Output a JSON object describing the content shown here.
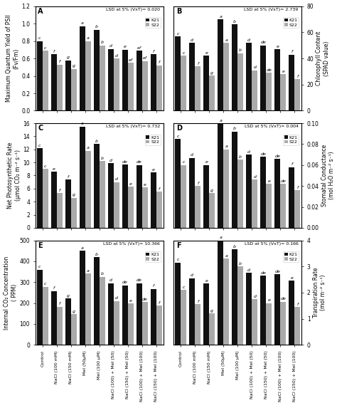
{
  "chart_data": [
    {
      "type": "bar",
      "title": "A",
      "annotations": [
        "LSD at 5% (VxT)= 0.020"
      ],
      "ylabel": "Maximum Quantum Yield of PSII\n(Fv/Fm)",
      "categories": [
        "Control",
        "NaCl (100 mM)",
        "NaCl (150 mM)",
        "Mel (50μM)",
        "Mel (100 μM)",
        "NaCl (100) + Mel (50)",
        "NaCl (150) + Mel (50)",
        "NaCl (100) + Mel (100)",
        "NaCl (150) + Mel (100)"
      ],
      "series": [
        {
          "name": "K21",
          "color": "#111111",
          "values": [
            0.8,
            0.65,
            0.58,
            0.97,
            0.93,
            0.71,
            0.7,
            0.69,
            0.65
          ],
          "labels": [
            "c",
            "f",
            "g",
            "a",
            "b",
            "d",
            "e",
            "ef",
            "f"
          ]
        },
        {
          "name": "S22",
          "color": "#aaaaaa",
          "values": [
            0.69,
            0.53,
            0.48,
            0.8,
            0.75,
            0.6,
            0.55,
            0.57,
            0.52
          ],
          "labels": [
            "c",
            "f",
            "g",
            "a",
            "b",
            "d",
            "ef",
            "ef",
            "f"
          ]
        }
      ],
      "ylim": [
        0.0,
        1.2
      ],
      "yticks": [
        0.0,
        0.2,
        0.4,
        0.6,
        0.8,
        1.0,
        1.2
      ],
      "legend": "upper right",
      "tick_labels": "y"
    },
    {
      "type": "bar",
      "title": "B",
      "annotations": [
        "LSD at 5% (VxT)= 2.739"
      ],
      "ylabel": "Chlorophyll Content\n(SPAD value)",
      "categories": [
        "Control",
        "NaCl (100 mM)",
        "NaCl (150 mM)",
        "Mel (50μM)",
        "Mel (100 μM)",
        "NaCl (100) + Mel (50)",
        "NaCl (150) + Mel (50)",
        "NaCl (100) + Mel (100)",
        "NaCl (150) + Mel (100)"
      ],
      "series": [
        {
          "name": "K21",
          "color": "#111111",
          "values": [
            57,
            52,
            42,
            70,
            66,
            52,
            50,
            47,
            43
          ],
          "labels": [
            "c",
            "d",
            "e",
            "a",
            "b",
            "d",
            "de",
            "e",
            "f"
          ]
        },
        {
          "name": "S22",
          "color": "#aaaaaa",
          "values": [
            42,
            34,
            27,
            52,
            44,
            31,
            29,
            28,
            24
          ],
          "labels": [
            "c",
            "f",
            "g",
            "a",
            "b",
            "d",
            "de",
            "e",
            "f"
          ]
        }
      ],
      "ylim": [
        0,
        80
      ],
      "yticks": [
        0,
        20,
        40,
        60,
        80
      ],
      "legend": "upper right",
      "tick_labels": "y"
    },
    {
      "type": "bar",
      "title": "C",
      "annotations": [
        "LSD at 5% (VxT)= 0.732"
      ],
      "ylabel": "Net Photosynthetic Rate\n(μmol CO₂ m⁻² s⁻¹)",
      "categories": [
        "Control",
        "NaCl (100 mM)",
        "NaCl (150 mM)",
        "Mel (50μM)",
        "Mel (100 μM)",
        "NaCl (100) + Mel (50)",
        "NaCl (150) + Mel (50)",
        "NaCl (100) + Mel (100)",
        "NaCl (150) + Mel (100)"
      ],
      "series": [
        {
          "name": "K21",
          "color": "#111111",
          "values": [
            12.2,
            8.6,
            7.4,
            15.5,
            12.8,
            9.9,
            9.7,
            9.6,
            8.5
          ],
          "labels": [
            "c",
            "e",
            "f",
            "a",
            "b",
            "d",
            "de",
            "de",
            "e"
          ]
        },
        {
          "name": "S22",
          "color": "#aaaaaa",
          "values": [
            9.0,
            5.3,
            4.6,
            11.8,
            10.2,
            7.0,
            6.3,
            6.2,
            5.5
          ],
          "labels": [
            "c",
            "f",
            "g",
            "a",
            "b",
            "d",
            "e",
            "e",
            "f"
          ]
        }
      ],
      "ylim": [
        0,
        16
      ],
      "yticks": [
        0,
        2,
        4,
        6,
        8,
        10,
        12,
        14,
        16
      ],
      "legend": "upper right",
      "tick_labels": "y"
    },
    {
      "type": "bar",
      "title": "D",
      "annotations": [
        "LSD at 5% (VxT)= 0.004"
      ],
      "ylabel": "Stomatal Conductance\n(mol H₂O m⁻² s⁻¹)",
      "categories": [
        "Control",
        "NaCl (100 mM)",
        "NaCl (150 mM)",
        "Mel (50μM)",
        "Mel (100 μM)",
        "NaCl (100) + Mel (50)",
        "NaCl (150) + Mel (50)",
        "NaCl (100) + Mel (100)",
        "NaCl (150) + Mel (100)"
      ],
      "series": [
        {
          "name": "K21",
          "color": "#111111",
          "values": [
            0.085,
            0.067,
            0.06,
            0.1,
            0.092,
            0.07,
            0.068,
            0.066,
            0.058
          ],
          "labels": [
            "c",
            "d",
            "e",
            "a",
            "b",
            "d",
            "de",
            "de",
            "f"
          ]
        },
        {
          "name": "S22",
          "color": "#aaaaaa",
          "values": [
            0.06,
            0.04,
            0.033,
            0.075,
            0.065,
            0.046,
            0.042,
            0.042,
            0.036
          ],
          "labels": [
            "c",
            "f",
            "g",
            "a",
            "b",
            "d",
            "e",
            "de",
            "f"
          ]
        }
      ],
      "ylim": [
        0.0,
        0.1
      ],
      "yticks": [
        {
          "value": 0.0,
          "label": "0.00"
        },
        0.02,
        0.04,
        0.06,
        0.08,
        {
          "value": 0.1,
          "label": "0.10"
        }
      ],
      "legend": "upper right",
      "tick_labels": "y"
    },
    {
      "type": "bar",
      "title": "E",
      "annotations": [
        "LSD at 5% (VxT)= 10.366"
      ],
      "ylabel": "Internal CO₂ Concentration\n( PPM)",
      "categories": [
        "Control",
        "NaCl (100 mM)",
        "NaCl (150 mM)",
        "Mel (50μM)",
        "Mel (100 μM)",
        "NaCl (100) + Mel (50)",
        "NaCl (150) + Mel (50)",
        "NaCl (100) + Mel (100)",
        "NaCl (150) + Mel (100)"
      ],
      "series": [
        {
          "name": "K21",
          "color": "#111111",
          "values": [
            360,
            257,
            222,
            450,
            420,
            295,
            285,
            295,
            268
          ],
          "labels": [
            "c",
            "f",
            "g",
            "a",
            "b",
            "d",
            "de",
            "de",
            "f"
          ]
        },
        {
          "name": "S22",
          "color": "#aaaaaa",
          "values": [
            278,
            183,
            147,
            342,
            325,
            210,
            198,
            205,
            188
          ],
          "labels": [
            "c",
            "f",
            "g",
            "a",
            "b",
            "d",
            "e",
            "de",
            "f"
          ]
        }
      ],
      "ylim": [
        0,
        500
      ],
      "yticks": [
        0,
        100,
        200,
        300,
        400,
        500
      ],
      "legend": "upper right"
    },
    {
      "type": "bar",
      "title": "F",
      "annotations": [
        "LSD at 5% (VxT)= 0.166"
      ],
      "ylabel": "Transpiration Rate\n(mol m⁻² s⁻¹)",
      "categories": [
        "Control",
        "NaCl (100 mM)",
        "NaCl (150 mM)",
        "Mel (50μM)",
        "Mel (100 μM)",
        "NaCl (100) + Mel (50)",
        "NaCl (150) + Mel (50)",
        "NaCl (100) + Mel (100)",
        "NaCl (150) + Mel (100)"
      ],
      "series": [
        {
          "name": "K21",
          "color": "#111111",
          "values": [
            3.15,
            2.55,
            2.35,
            4.0,
            3.65,
            2.75,
            2.65,
            2.7,
            2.45
          ],
          "labels": [
            "c",
            "d",
            "e",
            "a",
            "b",
            "d",
            "de",
            "de",
            "e"
          ]
        },
        {
          "name": "S22",
          "color": "#aaaaaa",
          "values": [
            2.1,
            1.55,
            1.2,
            3.3,
            3.0,
            1.75,
            1.6,
            1.65,
            1.45
          ],
          "labels": [
            "c",
            "f",
            "g",
            "a",
            "b",
            "d",
            "e",
            "de",
            "f"
          ]
        }
      ],
      "ylim": [
        0,
        4
      ],
      "yticks": [
        0,
        1,
        2,
        3,
        4
      ],
      "legend": "upper right"
    }
  ]
}
